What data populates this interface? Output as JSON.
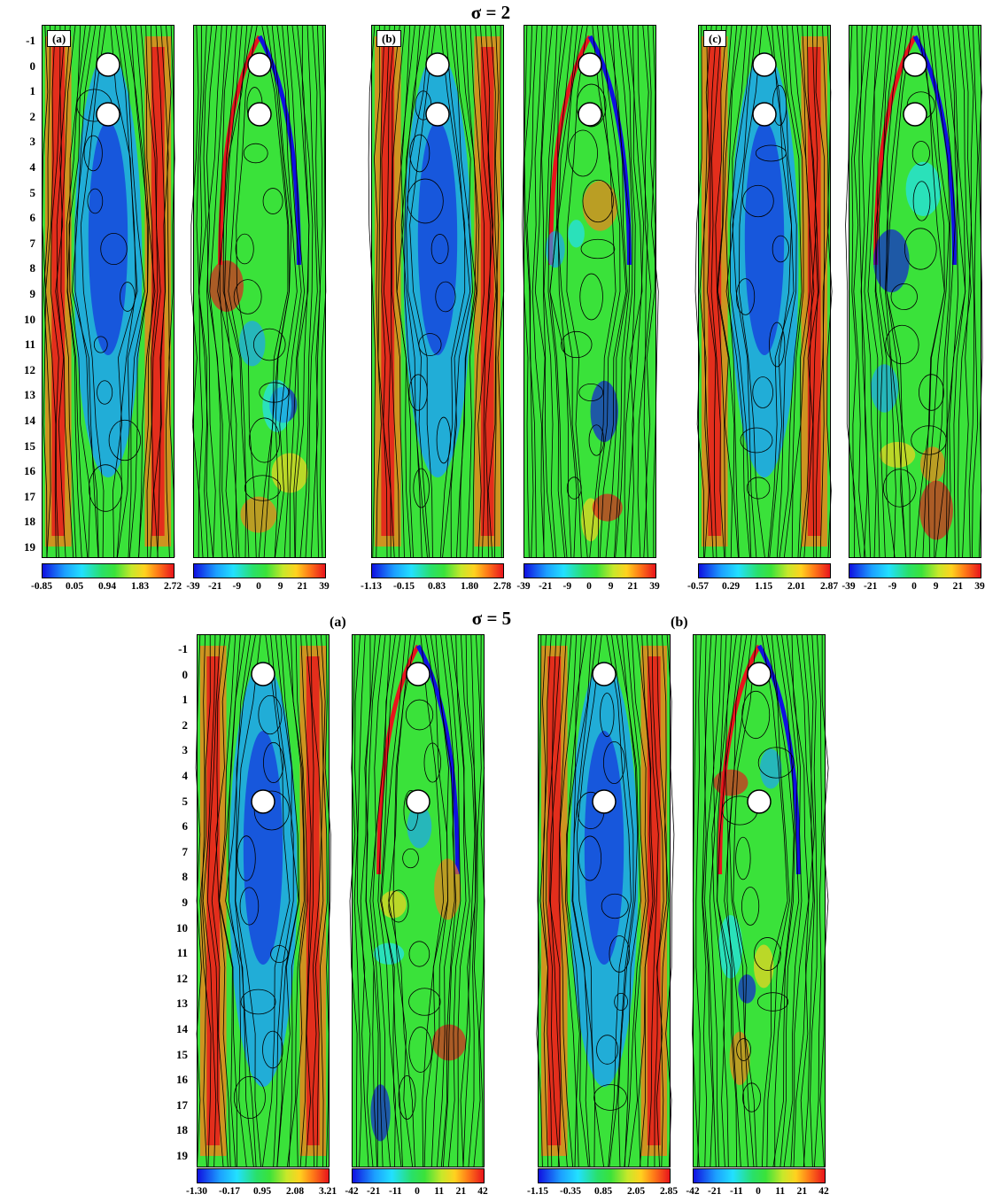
{
  "sections": {
    "sigma2": {
      "title": "σ = 2",
      "panels": [
        {
          "label": "(a)",
          "vel_ticks": [
            "-0.85",
            "0.05",
            "0.94",
            "1.83",
            "2.72"
          ],
          "vort_ticks": [
            "-39",
            "-21",
            "-9",
            "0",
            "9",
            "21",
            "39"
          ]
        },
        {
          "label": "(b)",
          "vel_ticks": [
            "-1.13",
            "-0.15",
            "0.83",
            "1.80",
            "2.78"
          ],
          "vort_ticks": [
            "-39",
            "-21",
            "-9",
            "0",
            "9",
            "21",
            "39"
          ]
        },
        {
          "label": "(c)",
          "vel_ticks": [
            "-0.57",
            "0.29",
            "1.15",
            "2.01",
            "2.87"
          ],
          "vort_ticks": [
            "-39",
            "-21",
            "-9",
            "0",
            "9",
            "21",
            "39"
          ]
        }
      ]
    },
    "sigma5": {
      "title": "σ = 5",
      "panels": [
        {
          "label": "(a)",
          "vel_ticks": [
            "-1.30",
            "-0.17",
            "0.95",
            "2.08",
            "3.21"
          ],
          "vort_ticks": [
            "-42",
            "-21",
            "-11",
            "0",
            "11",
            "21",
            "42"
          ]
        },
        {
          "label": "(b)",
          "vel_ticks": [
            "-1.15",
            "-0.35",
            "0.85",
            "2.05",
            "2.85"
          ],
          "vort_ticks": [
            "-42",
            "-21",
            "-11",
            "0",
            "11",
            "21",
            "42"
          ]
        }
      ]
    }
  },
  "y_axis_ticks": [
    "-1",
    "0",
    "1",
    "2",
    "3",
    "4",
    "5",
    "6",
    "7",
    "8",
    "9",
    "10",
    "11",
    "12",
    "13",
    "14",
    "15",
    "16",
    "17",
    "18",
    "19"
  ],
  "colormap": [
    "#1010e0",
    "#1ca0ff",
    "#22e0ff",
    "#29e06a",
    "#3ae23a",
    "#c8e82a",
    "#ffd21f",
    "#ff7a18",
    "#e8141c"
  ]
}
